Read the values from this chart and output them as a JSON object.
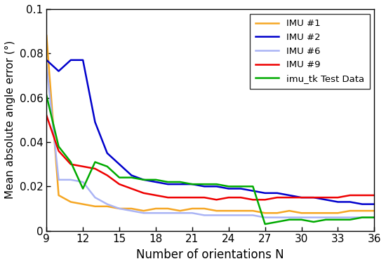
{
  "x": [
    9,
    10,
    11,
    12,
    13,
    14,
    15,
    16,
    17,
    18,
    19,
    20,
    21,
    22,
    23,
    24,
    25,
    26,
    27,
    28,
    29,
    30,
    31,
    32,
    33,
    34,
    35,
    36
  ],
  "imu1": [
    0.088,
    0.016,
    0.013,
    0.012,
    0.011,
    0.011,
    0.01,
    0.01,
    0.009,
    0.01,
    0.01,
    0.009,
    0.01,
    0.01,
    0.009,
    0.009,
    0.009,
    0.009,
    0.008,
    0.008,
    0.009,
    0.008,
    0.008,
    0.008,
    0.008,
    0.009,
    0.009,
    0.009
  ],
  "imu2": [
    0.077,
    0.072,
    0.077,
    0.077,
    0.049,
    0.035,
    0.03,
    0.025,
    0.023,
    0.022,
    0.021,
    0.021,
    0.021,
    0.02,
    0.02,
    0.019,
    0.019,
    0.018,
    0.017,
    0.017,
    0.016,
    0.015,
    0.015,
    0.014,
    0.013,
    0.013,
    0.012,
    0.012
  ],
  "imu6": [
    0.075,
    0.023,
    0.023,
    0.022,
    0.015,
    0.012,
    0.01,
    0.009,
    0.008,
    0.008,
    0.008,
    0.008,
    0.008,
    0.007,
    0.007,
    0.007,
    0.007,
    0.007,
    0.006,
    0.006,
    0.006,
    0.006,
    0.006,
    0.006,
    0.006,
    0.006,
    0.006,
    0.006
  ],
  "imu9": [
    0.052,
    0.036,
    0.03,
    0.029,
    0.028,
    0.025,
    0.021,
    0.019,
    0.017,
    0.016,
    0.015,
    0.015,
    0.015,
    0.015,
    0.014,
    0.015,
    0.015,
    0.014,
    0.014,
    0.015,
    0.015,
    0.015,
    0.015,
    0.015,
    0.015,
    0.016,
    0.016,
    0.016
  ],
  "imu_tk": [
    0.061,
    0.038,
    0.031,
    0.019,
    0.031,
    0.029,
    0.024,
    0.024,
    0.023,
    0.023,
    0.022,
    0.022,
    0.021,
    0.021,
    0.021,
    0.02,
    0.02,
    0.02,
    0.003,
    0.004,
    0.005,
    0.005,
    0.004,
    0.005,
    0.005,
    0.005,
    0.006,
    0.006
  ],
  "colors": {
    "imu1": "#f5a623",
    "imu2": "#0000cc",
    "imu6": "#aab4f5",
    "imu9": "#ee0000",
    "imu_tk": "#00aa00"
  },
  "labels": {
    "imu1": "IMU #1",
    "imu2": "IMU #2",
    "imu6": "IMU #6",
    "imu9": "IMU #9",
    "imu_tk": "imu_tk Test Data"
  },
  "xlabel": "Number of orientations N",
  "ylabel": "Mean absolute angle error (°)",
  "xlim": [
    9,
    36
  ],
  "ylim": [
    0,
    0.1
  ],
  "xticks": [
    9,
    12,
    15,
    18,
    21,
    24,
    27,
    30,
    33,
    36
  ],
  "yticks": [
    0,
    0.02,
    0.04,
    0.06,
    0.08,
    0.1
  ],
  "ytick_labels": [
    "0",
    "0.02",
    "0.04",
    "0.06",
    "0.08",
    "0.1"
  ],
  "linewidth": 1.8
}
